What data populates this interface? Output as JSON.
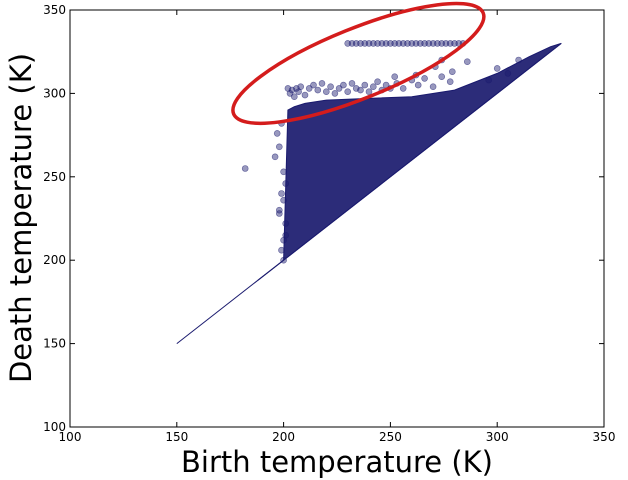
{
  "chart_data": {
    "type": "scatter",
    "title": "",
    "xlabel": "Birth temperature (K)",
    "ylabel": "Death temperature (K)",
    "xlim": [
      100,
      350
    ],
    "ylim": [
      100,
      350
    ],
    "xticks": [
      "100",
      "150",
      "200",
      "250",
      "300",
      "350"
    ],
    "yticks": [
      "100",
      "150",
      "200",
      "250",
      "300",
      "350"
    ],
    "grid": false,
    "legend": "none",
    "point_color": "#1a1a6e",
    "point_alpha": 0.45,
    "diagonal_line": {
      "x": [
        150,
        330
      ],
      "y": [
        150,
        330
      ],
      "color": "#1a1a6e"
    },
    "dense_region_outline": {
      "x": [
        188,
        200,
        202,
        205,
        210,
        220,
        240,
        260,
        280,
        300,
        315,
        325,
        330,
        330,
        188
      ],
      "y": [
        188,
        200,
        290,
        292,
        294,
        296,
        297,
        298,
        302,
        312,
        322,
        328,
        330,
        330,
        188
      ]
    },
    "points": {
      "x": [
        202,
        203,
        204,
        205,
        206,
        207,
        208,
        210,
        212,
        214,
        216,
        218,
        220,
        222,
        224,
        226,
        228,
        230,
        232,
        234,
        236,
        238,
        240,
        242,
        244,
        246,
        248,
        250,
        253,
        256,
        260,
        263,
        266,
        270,
        274,
        278,
        230,
        232,
        234,
        236,
        238,
        240,
        242,
        244,
        246,
        248,
        250,
        252,
        254,
        256,
        258,
        260,
        262,
        264,
        266,
        268,
        270,
        272,
        274,
        276,
        278,
        280,
        282,
        284,
        182,
        196,
        197,
        198,
        199,
        200,
        201,
        199,
        198,
        200,
        201,
        200,
        199,
        198,
        201,
        200,
        262,
        271,
        279,
        286,
        252,
        274,
        300,
        310,
        305,
        296
      ],
      "y": [
        303,
        300,
        302,
        298,
        303,
        301,
        304,
        299,
        303,
        305,
        302,
        306,
        301,
        304,
        300,
        303,
        305,
        301,
        306,
        303,
        302,
        305,
        301,
        304,
        307,
        302,
        305,
        303,
        306,
        303,
        308,
        305,
        309,
        304,
        310,
        307,
        330,
        330,
        330,
        330,
        330,
        330,
        330,
        330,
        330,
        330,
        330,
        330,
        330,
        330,
        330,
        330,
        330,
        330,
        330,
        330,
        330,
        330,
        330,
        330,
        330,
        330,
        330,
        330,
        255,
        262,
        276,
        268,
        282,
        253,
        246,
        240,
        230,
        236,
        222,
        212,
        206,
        228,
        215,
        200,
        311,
        316,
        313,
        319,
        310,
        320,
        315,
        320,
        312,
        308
      ]
    },
    "annotation_ellipse": {
      "center": [
        235,
        318
      ],
      "rx": 30,
      "ry": 11,
      "rotation_deg": -22,
      "color": "#d41c1c"
    }
  }
}
